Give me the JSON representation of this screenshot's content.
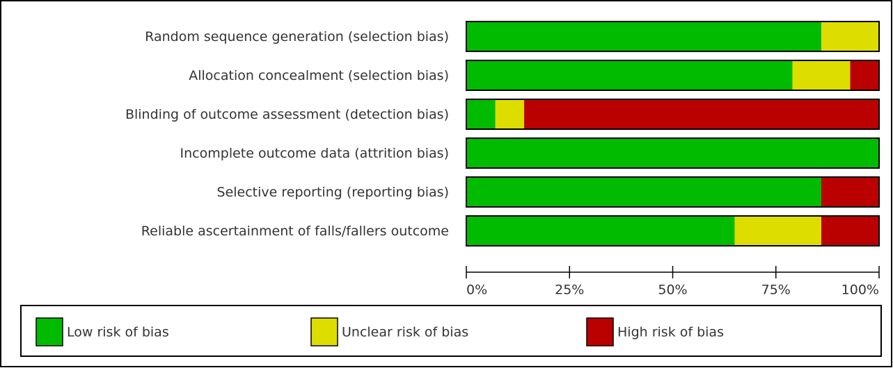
{
  "chart_data": {
    "type": "stacked-bar-horizontal",
    "categories": [
      "Random sequence generation (selection bias)",
      "Allocation concealment (selection bias)",
      "Blinding of outcome assessment (detection bias)",
      "Incomplete outcome data (attrition bias)",
      "Selective reporting (reporting bias)",
      "Reliable ascertainment of falls/fallers outcome"
    ],
    "series": [
      {
        "name": "Low risk of bias",
        "color": "#00bb00",
        "values": [
          86,
          79,
          7,
          100,
          86,
          65
        ]
      },
      {
        "name": "Unclear risk of bias",
        "color": "#dddd00",
        "values": [
          14,
          14,
          7,
          0,
          0,
          21
        ]
      },
      {
        "name": "High risk of bias",
        "color": "#bb0000",
        "values": [
          0,
          7,
          86,
          0,
          14,
          14
        ]
      }
    ],
    "xlim": [
      0,
      100
    ],
    "xticks": [
      {
        "value": 0,
        "label": "0%"
      },
      {
        "value": 25,
        "label": "25%"
      },
      {
        "value": 50,
        "label": "50%"
      },
      {
        "value": 75,
        "label": "75%"
      },
      {
        "value": 100,
        "label": "100%"
      }
    ]
  }
}
